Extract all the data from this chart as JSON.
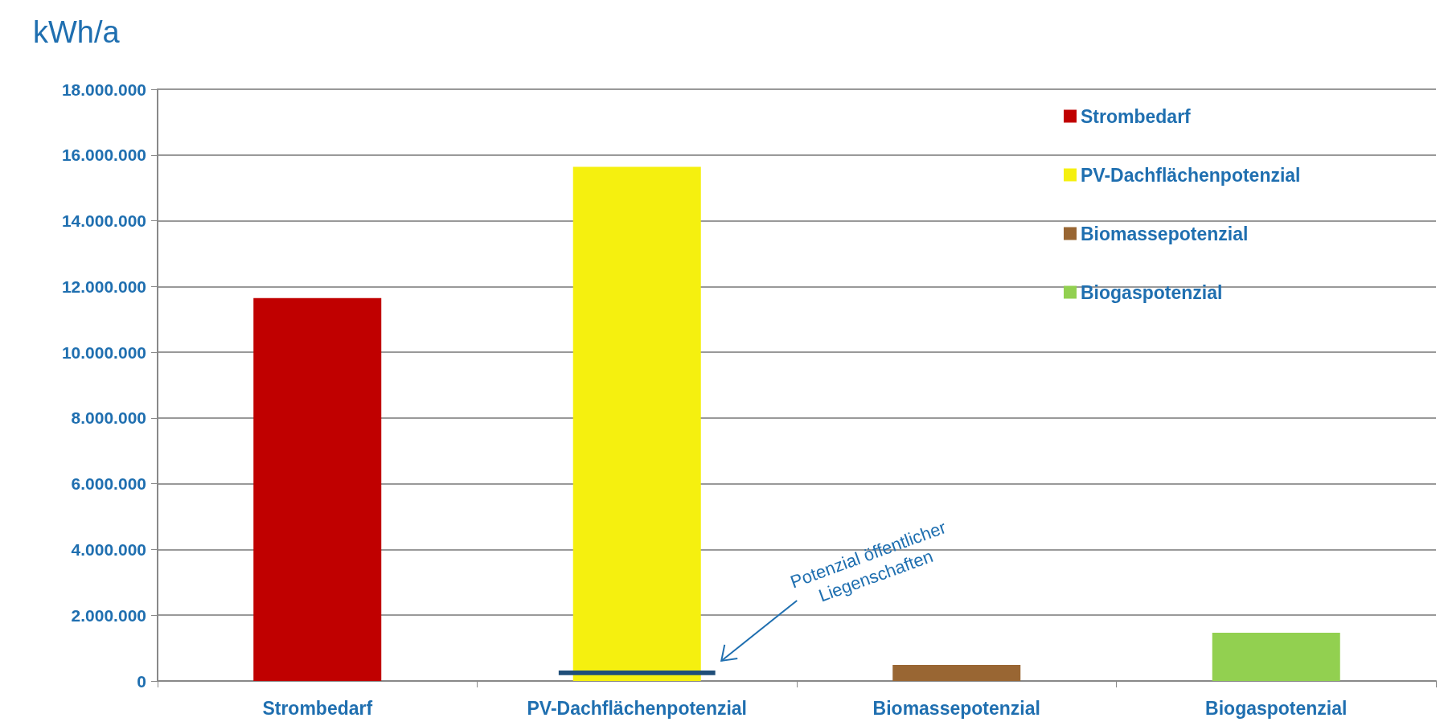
{
  "chart_data": {
    "type": "bar",
    "ylabel": "kWh/a",
    "categories": [
      "Strombedarf",
      "PV-Dachflächenpotenzial",
      "Biomassepotenzial",
      "Biogaspotenzial"
    ],
    "series": [
      {
        "name": "Strombedarf",
        "color": "#c00000",
        "values": [
          11650000,
          null,
          null,
          null
        ]
      },
      {
        "name": "PV-Dachflächenpotenzial",
        "color": "#f5f00f",
        "values": [
          null,
          15640000,
          null,
          null
        ]
      },
      {
        "name": "Biomassepotenzial",
        "color": "#996633",
        "values": [
          null,
          null,
          490000,
          null
        ]
      },
      {
        "name": "Biogaspotenzial",
        "color": "#92d050",
        "values": [
          null,
          null,
          null,
          1470000
        ]
      },
      {
        "color": "#1f4e79",
        "base": [
          null,
          180000,
          null,
          null
        ],
        "values": [
          null,
          140000,
          null,
          null
        ]
      }
    ],
    "ylim": [
      0,
      18000000
    ],
    "yticks": [
      {
        "value": 0,
        "label": "0"
      },
      {
        "value": 2000000,
        "label": "2.000.000"
      },
      {
        "value": 4000000,
        "label": "4.000.000"
      },
      {
        "value": 6000000,
        "label": "6.000.000"
      },
      {
        "value": 8000000,
        "label": "8.000.000"
      },
      {
        "value": 10000000,
        "label": "10.000.000"
      },
      {
        "value": 12000000,
        "label": "12.000.000"
      },
      {
        "value": 14000000,
        "label": "14.000.000"
      },
      {
        "value": 16000000,
        "label": "16.000.000"
      },
      {
        "value": 18000000,
        "label": "18.000.000"
      }
    ],
    "grid": "y",
    "legend": "top right",
    "annotations": [
      "Potenzial öffentlicher Liegenschaften"
    ]
  }
}
